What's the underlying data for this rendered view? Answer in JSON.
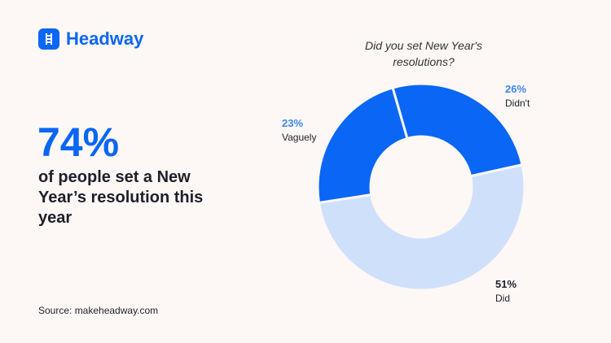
{
  "brand": {
    "name": "Headway",
    "icon": "ladder-icon",
    "color": "#0a66f5"
  },
  "headline": {
    "value": "74%",
    "text": "of people set a New Year’s resolution this year"
  },
  "source": "Source: makeheadway.com",
  "chart_data": {
    "type": "pie",
    "donut": true,
    "title": "Did you set New Year's resolutions?",
    "slices": [
      {
        "label": "Didn't",
        "value": 26,
        "display": "26%",
        "color": "#0a66f5",
        "label_color": "#3a86f0"
      },
      {
        "label": "Did",
        "value": 51,
        "display": "51%",
        "color": "#cfe0fb",
        "label_color": "#1f1f2b"
      },
      {
        "label": "Vaguely",
        "value": 23,
        "display": "23%",
        "color": "#0a66f5",
        "label_color": "#3a86f0"
      }
    ]
  }
}
